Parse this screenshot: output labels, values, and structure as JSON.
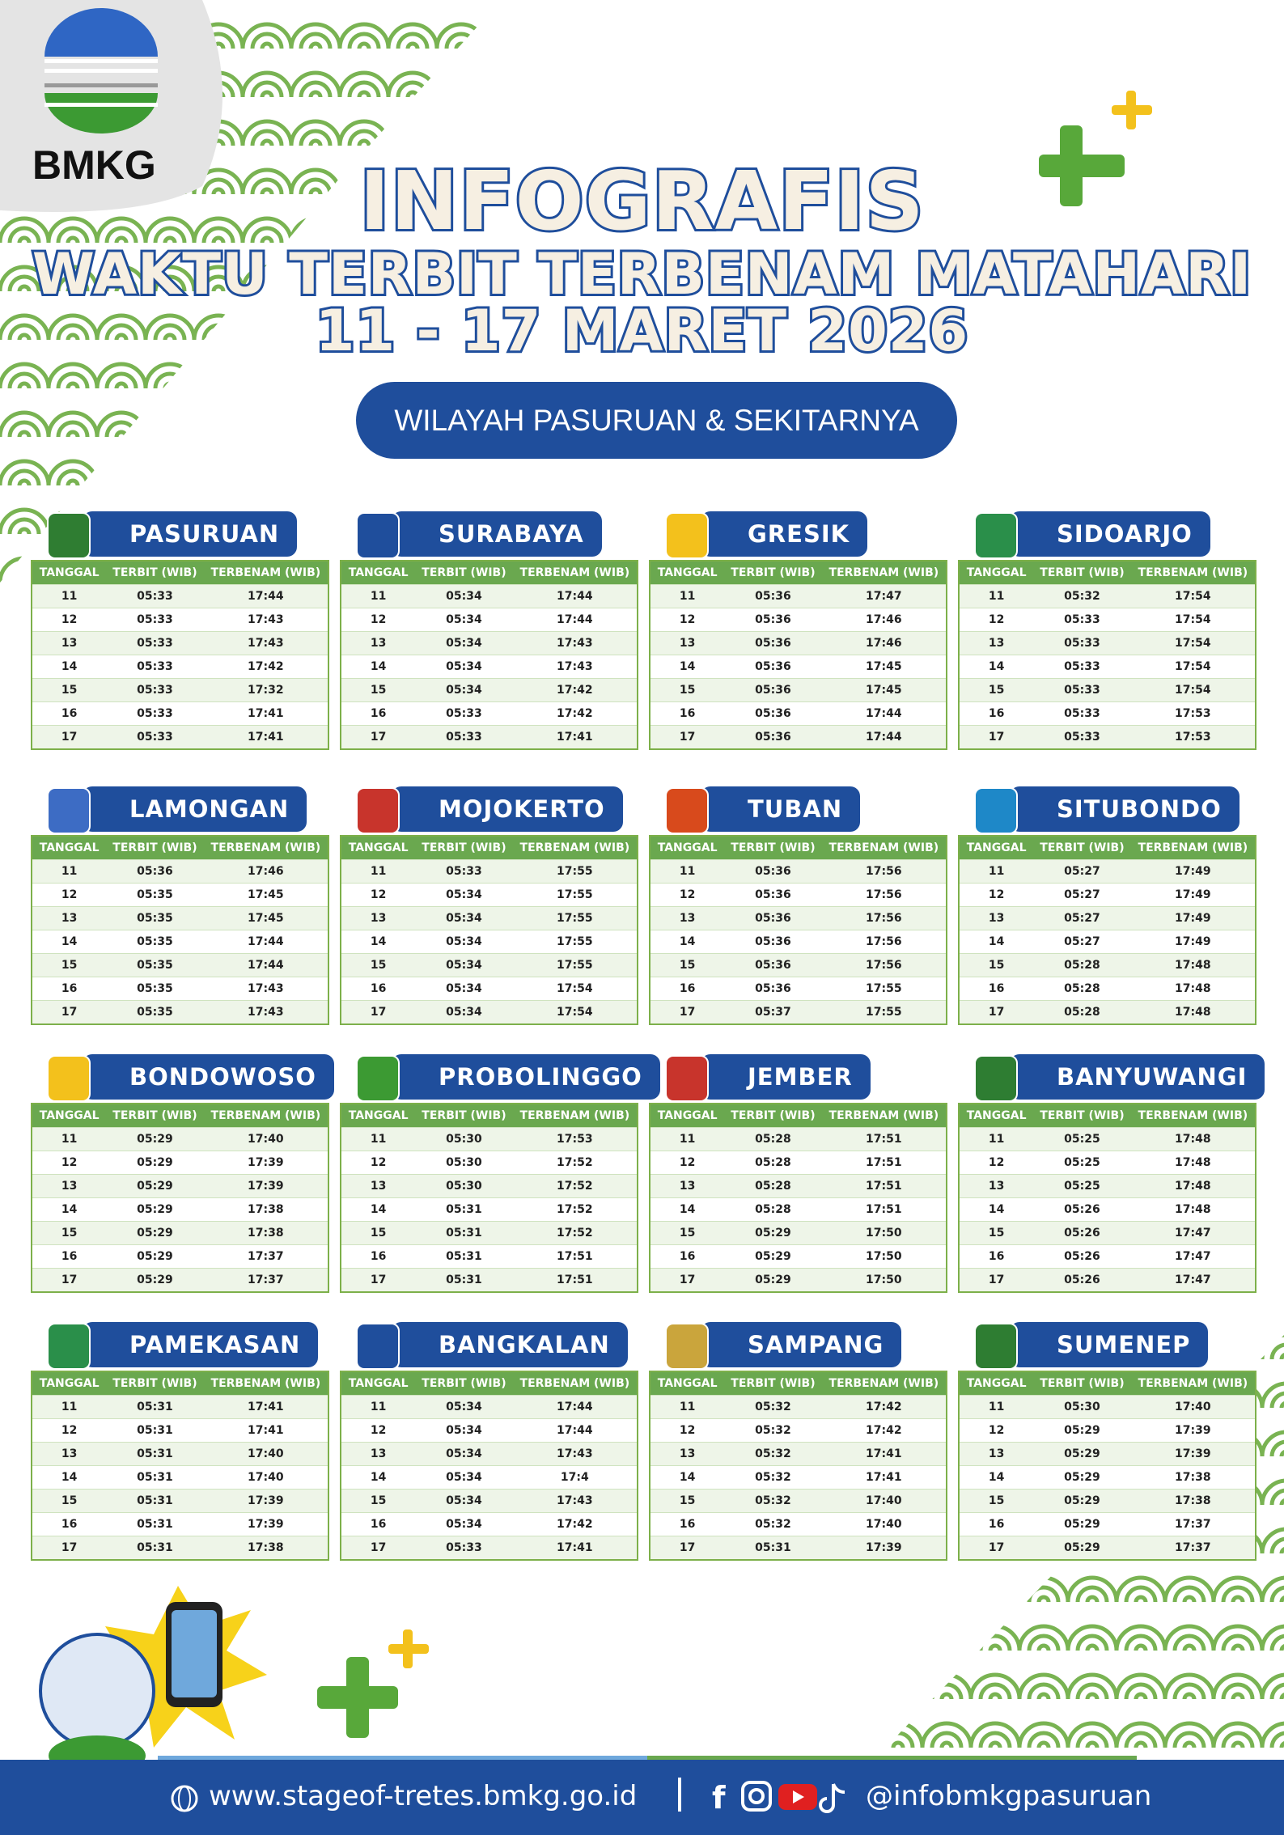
{
  "header": {
    "logo_text": "BMKG",
    "title": "INFOGRAFIS",
    "subtitle": "WAKTU TERBIT TERBENAM MATAHARI",
    "date": "11 - 17 MARET 2026",
    "region": "WILAYAH PASURUAN & SEKITARNYA"
  },
  "columns": [
    "TANGGAL",
    "TERBIT (WIB)",
    "TERBENAM (WIB)"
  ],
  "tables": [
    {
      "name": "PASURUAN",
      "rows": [
        [
          "11",
          "05:33",
          "17:44"
        ],
        [
          "12",
          "05:33",
          "17:43"
        ],
        [
          "13",
          "05:33",
          "17:43"
        ],
        [
          "14",
          "05:33",
          "17:42"
        ],
        [
          "15",
          "05:33",
          "17:32"
        ],
        [
          "16",
          "05:33",
          "17:41"
        ],
        [
          "17",
          "05:33",
          "17:41"
        ]
      ]
    },
    {
      "name": "SURABAYA",
      "rows": [
        [
          "11",
          "05:34",
          "17:44"
        ],
        [
          "12",
          "05:34",
          "17:44"
        ],
        [
          "13",
          "05:34",
          "17:43"
        ],
        [
          "14",
          "05:34",
          "17:43"
        ],
        [
          "15",
          "05:34",
          "17:42"
        ],
        [
          "16",
          "05:33",
          "17:42"
        ],
        [
          "17",
          "05:33",
          "17:41"
        ]
      ]
    },
    {
      "name": "GRESIK",
      "rows": [
        [
          "11",
          "05:36",
          "17:47"
        ],
        [
          "12",
          "05:36",
          "17:46"
        ],
        [
          "13",
          "05:36",
          "17:46"
        ],
        [
          "14",
          "05:36",
          "17:45"
        ],
        [
          "15",
          "05:36",
          "17:45"
        ],
        [
          "16",
          "05:36",
          "17:44"
        ],
        [
          "17",
          "05:36",
          "17:44"
        ]
      ]
    },
    {
      "name": "SIDOARJO",
      "rows": [
        [
          "11",
          "05:32",
          "17:54"
        ],
        [
          "12",
          "05:33",
          "17:54"
        ],
        [
          "13",
          "05:33",
          "17:54"
        ],
        [
          "14",
          "05:33",
          "17:54"
        ],
        [
          "15",
          "05:33",
          "17:54"
        ],
        [
          "16",
          "05:33",
          "17:53"
        ],
        [
          "17",
          "05:33",
          "17:53"
        ]
      ]
    },
    {
      "name": "LAMONGAN",
      "rows": [
        [
          "11",
          "05:36",
          "17:46"
        ],
        [
          "12",
          "05:35",
          "17:45"
        ],
        [
          "13",
          "05:35",
          "17:45"
        ],
        [
          "14",
          "05:35",
          "17:44"
        ],
        [
          "15",
          "05:35",
          "17:44"
        ],
        [
          "16",
          "05:35",
          "17:43"
        ],
        [
          "17",
          "05:35",
          "17:43"
        ]
      ]
    },
    {
      "name": "MOJOKERTO",
      "rows": [
        [
          "11",
          "05:33",
          "17:55"
        ],
        [
          "12",
          "05:34",
          "17:55"
        ],
        [
          "13",
          "05:34",
          "17:55"
        ],
        [
          "14",
          "05:34",
          "17:55"
        ],
        [
          "15",
          "05:34",
          "17:55"
        ],
        [
          "16",
          "05:34",
          "17:54"
        ],
        [
          "17",
          "05:34",
          "17:54"
        ]
      ]
    },
    {
      "name": "TUBAN",
      "rows": [
        [
          "11",
          "05:36",
          "17:56"
        ],
        [
          "12",
          "05:36",
          "17:56"
        ],
        [
          "13",
          "05:36",
          "17:56"
        ],
        [
          "14",
          "05:36",
          "17:56"
        ],
        [
          "15",
          "05:36",
          "17:56"
        ],
        [
          "16",
          "05:36",
          "17:55"
        ],
        [
          "17",
          "05:37",
          "17:55"
        ]
      ]
    },
    {
      "name": "SITUBONDO",
      "rows": [
        [
          "11",
          "05:27",
          "17:49"
        ],
        [
          "12",
          "05:27",
          "17:49"
        ],
        [
          "13",
          "05:27",
          "17:49"
        ],
        [
          "14",
          "05:27",
          "17:49"
        ],
        [
          "15",
          "05:28",
          "17:48"
        ],
        [
          "16",
          "05:28",
          "17:48"
        ],
        [
          "17",
          "05:28",
          "17:48"
        ]
      ]
    },
    {
      "name": "BONDOWOSO",
      "rows": [
        [
          "11",
          "05:29",
          "17:40"
        ],
        [
          "12",
          "05:29",
          "17:39"
        ],
        [
          "13",
          "05:29",
          "17:39"
        ],
        [
          "14",
          "05:29",
          "17:38"
        ],
        [
          "15",
          "05:29",
          "17:38"
        ],
        [
          "16",
          "05:29",
          "17:37"
        ],
        [
          "17",
          "05:29",
          "17:37"
        ]
      ]
    },
    {
      "name": "PROBOLINGGO",
      "rows": [
        [
          "11",
          "05:30",
          "17:53"
        ],
        [
          "12",
          "05:30",
          "17:52"
        ],
        [
          "13",
          "05:30",
          "17:52"
        ],
        [
          "14",
          "05:31",
          "17:52"
        ],
        [
          "15",
          "05:31",
          "17:52"
        ],
        [
          "16",
          "05:31",
          "17:51"
        ],
        [
          "17",
          "05:31",
          "17:51"
        ]
      ]
    },
    {
      "name": "JEMBER",
      "rows": [
        [
          "11",
          "05:28",
          "17:51"
        ],
        [
          "12",
          "05:28",
          "17:51"
        ],
        [
          "13",
          "05:28",
          "17:51"
        ],
        [
          "14",
          "05:28",
          "17:51"
        ],
        [
          "15",
          "05:29",
          "17:50"
        ],
        [
          "16",
          "05:29",
          "17:50"
        ],
        [
          "17",
          "05:29",
          "17:50"
        ]
      ]
    },
    {
      "name": "BANYUWANGI",
      "rows": [
        [
          "11",
          "05:25",
          "17:48"
        ],
        [
          "12",
          "05:25",
          "17:48"
        ],
        [
          "13",
          "05:25",
          "17:48"
        ],
        [
          "14",
          "05:26",
          "17:48"
        ],
        [
          "15",
          "05:26",
          "17:47"
        ],
        [
          "16",
          "05:26",
          "17:47"
        ],
        [
          "17",
          "05:26",
          "17:47"
        ]
      ]
    },
    {
      "name": "PAMEKASAN",
      "rows": [
        [
          "11",
          "05:31",
          "17:41"
        ],
        [
          "12",
          "05:31",
          "17:41"
        ],
        [
          "13",
          "05:31",
          "17:40"
        ],
        [
          "14",
          "05:31",
          "17:40"
        ],
        [
          "15",
          "05:31",
          "17:39"
        ],
        [
          "16",
          "05:31",
          "17:39"
        ],
        [
          "17",
          "05:31",
          "17:38"
        ]
      ]
    },
    {
      "name": "BANGKALAN",
      "rows": [
        [
          "11",
          "05:34",
          "17:44"
        ],
        [
          "12",
          "05:34",
          "17:44"
        ],
        [
          "13",
          "05:34",
          "17:43"
        ],
        [
          "14",
          "05:34",
          "17:4"
        ],
        [
          "15",
          "05:34",
          "17:43"
        ],
        [
          "16",
          "05:34",
          "17:42"
        ],
        [
          "17",
          "05:33",
          "17:41"
        ]
      ]
    },
    {
      "name": "SAMPANG",
      "rows": [
        [
          "11",
          "05:32",
          "17:42"
        ],
        [
          "12",
          "05:32",
          "17:42"
        ],
        [
          "13",
          "05:32",
          "17:41"
        ],
        [
          "14",
          "05:32",
          "17:41"
        ],
        [
          "15",
          "05:32",
          "17:40"
        ],
        [
          "16",
          "05:32",
          "17:40"
        ],
        [
          "17",
          "05:31",
          "17:39"
        ]
      ]
    },
    {
      "name": "SUMENEP",
      "rows": [
        [
          "11",
          "05:30",
          "17:40"
        ],
        [
          "12",
          "05:29",
          "17:39"
        ],
        [
          "13",
          "05:29",
          "17:39"
        ],
        [
          "14",
          "05:29",
          "17:38"
        ],
        [
          "15",
          "05:29",
          "17:38"
        ],
        [
          "16",
          "05:29",
          "17:37"
        ],
        [
          "17",
          "05:29",
          "17:37"
        ]
      ]
    }
  ],
  "footer": {
    "website": "www.stageof-tretes.bmkg.go.id",
    "social": "@infobmkgpasuruan"
  }
}
